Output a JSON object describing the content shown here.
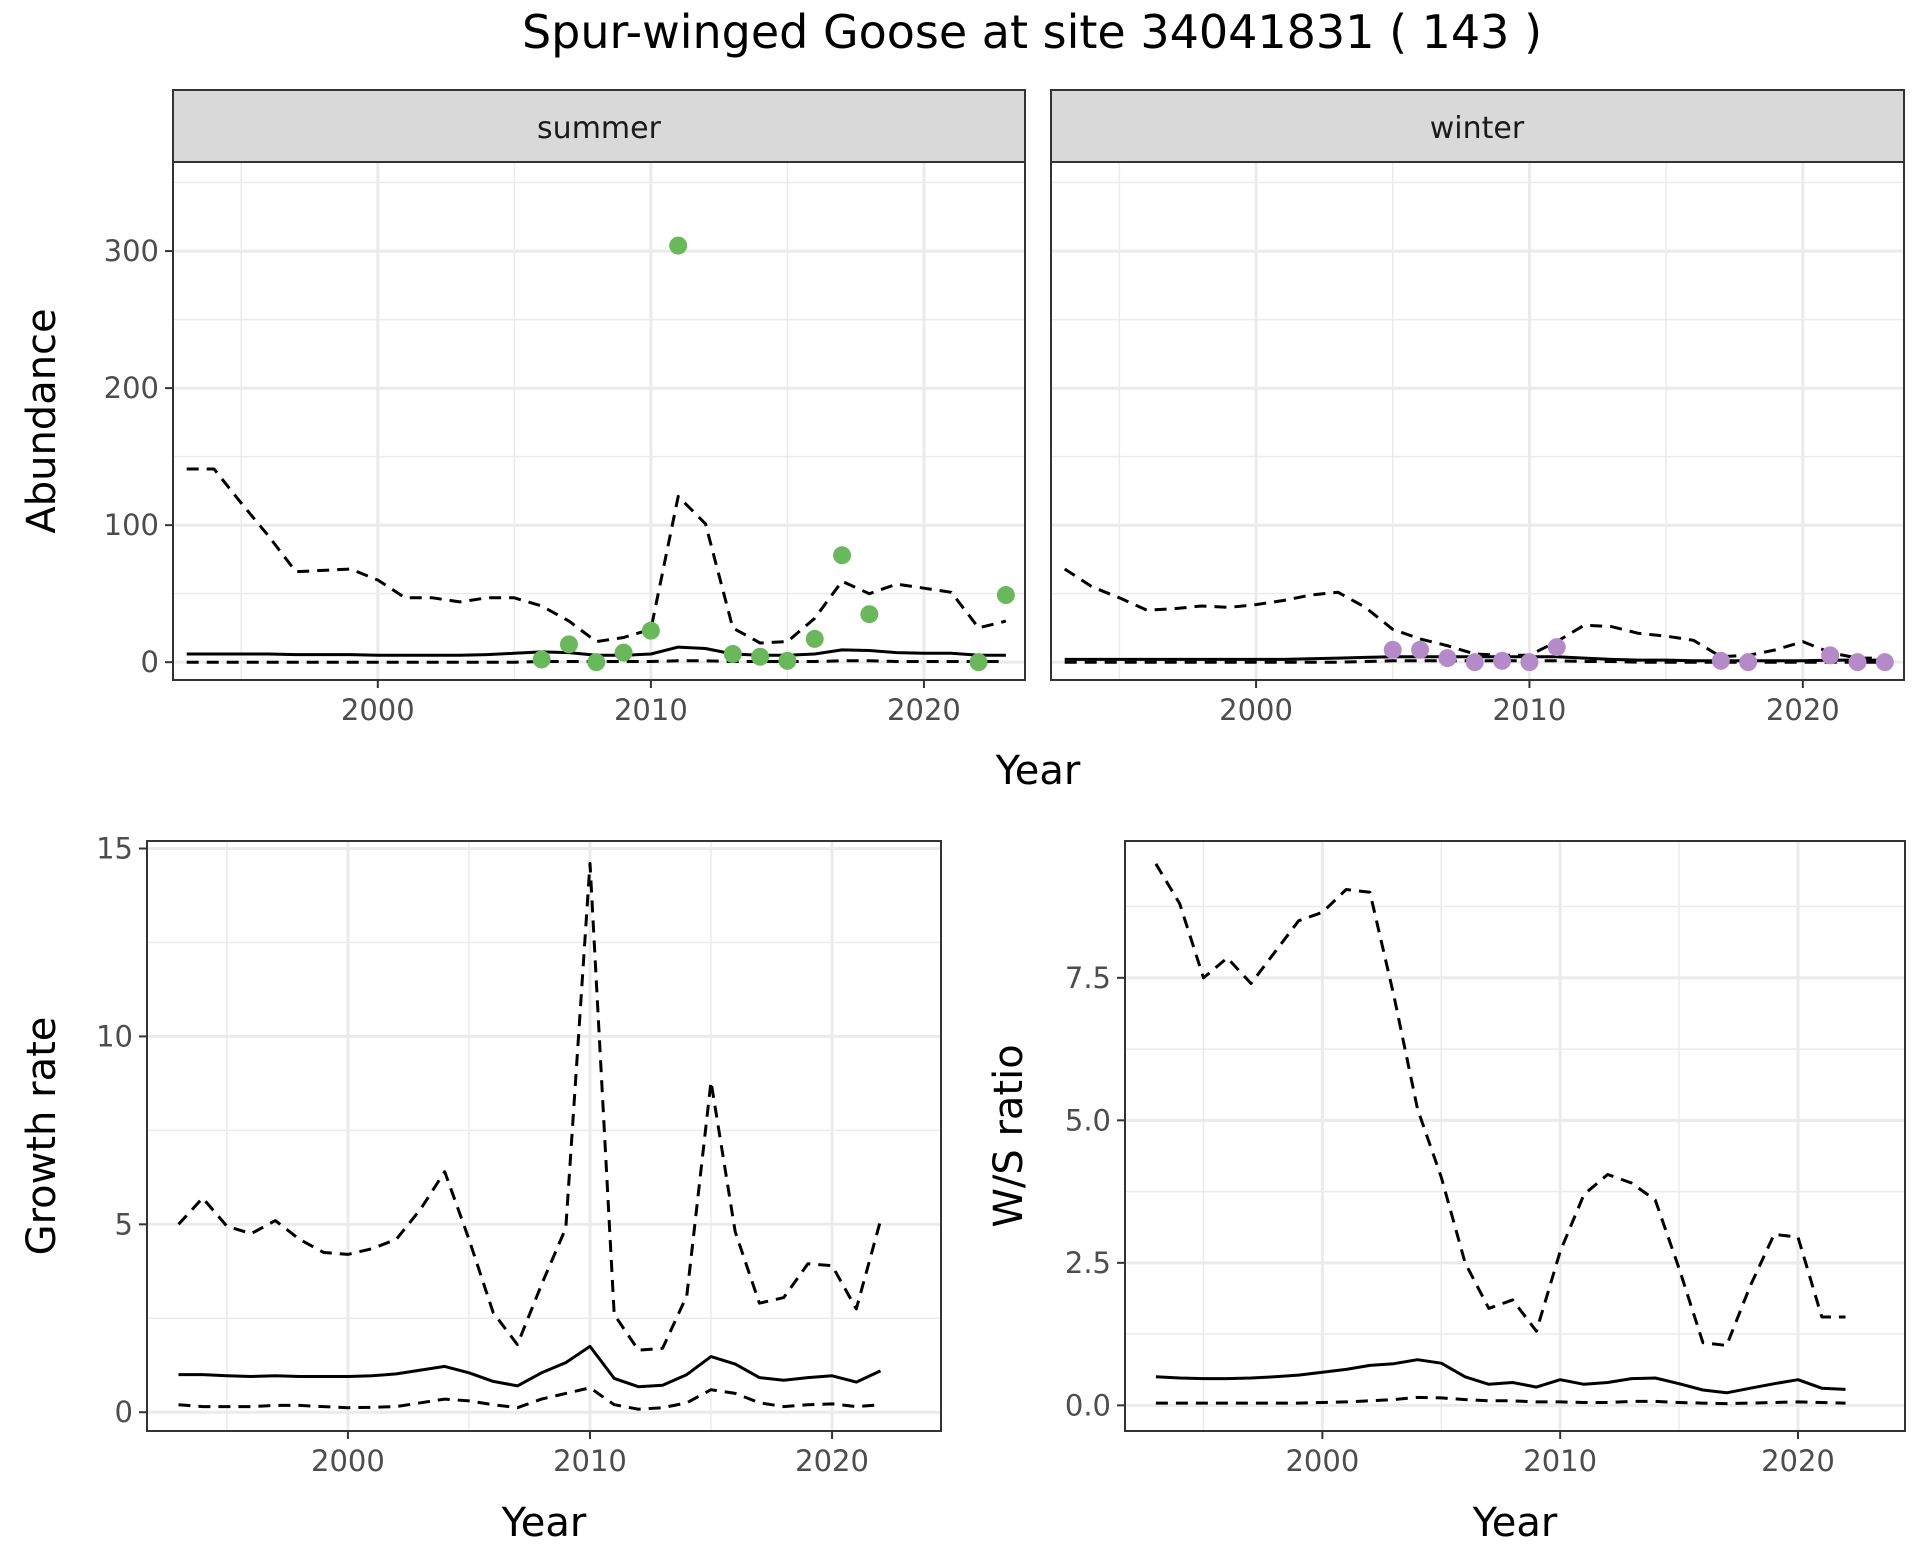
{
  "title": "Spur-winged Goose at site 34041831 ( 143 )",
  "colors": {
    "summer_points": "#6ab85c",
    "winter_points": "#b48bc8",
    "lines": "#000000",
    "strip_fill": "#d9d9d9",
    "grid": "#ebebeb"
  },
  "chart_data": [
    {
      "type": "line",
      "panel": "summer",
      "strip_label": "summer",
      "ylabel": "Abundance",
      "xlabel": "Year",
      "xlim": [
        1992.5,
        2023.7
      ],
      "ylim": [
        -13,
        365
      ],
      "x_ticks": [
        2000,
        2010,
        2020
      ],
      "y_ticks": [
        0,
        100,
        200,
        300
      ],
      "grid": true,
      "series": [
        {
          "style": "solid",
          "x": [
            1993,
            1994,
            1995,
            1996,
            1997,
            1998,
            1999,
            2000,
            2001,
            2002,
            2003,
            2004,
            2005,
            2006,
            2007,
            2008,
            2009,
            2010,
            2011,
            2012,
            2013,
            2014,
            2015,
            2016,
            2017,
            2018,
            2019,
            2020,
            2021,
            2022,
            2023
          ],
          "y": [
            6,
            6,
            6,
            6,
            5.5,
            5.5,
            5.5,
            5,
            5,
            5,
            5,
            5.5,
            6.5,
            7.5,
            7,
            5,
            5,
            6,
            11,
            10,
            6,
            5,
            5,
            6,
            9,
            8.5,
            7,
            6.5,
            6.5,
            5,
            5
          ]
        },
        {
          "style": "dashed",
          "x": [
            1993,
            1994,
            1995,
            1996,
            1997,
            1998,
            1999,
            2000,
            2001,
            2002,
            2003,
            2004,
            2005,
            2006,
            2007,
            2008,
            2009,
            2010,
            2011,
            2012,
            2013,
            2014,
            2015,
            2016,
            2017,
            2018,
            2019,
            2020,
            2021,
            2022,
            2023
          ],
          "y": [
            141,
            141,
            116,
            92,
            66,
            67,
            68,
            60,
            47,
            47,
            44,
            47,
            47,
            41,
            30,
            15,
            18,
            24,
            121,
            101,
            25,
            14,
            15,
            32,
            59,
            50,
            57,
            54,
            51,
            25,
            30
          ]
        },
        {
          "style": "dashed",
          "x": [
            1993,
            1994,
            1995,
            1996,
            1997,
            1998,
            1999,
            2000,
            2001,
            2002,
            2003,
            2004,
            2005,
            2006,
            2007,
            2008,
            2009,
            2010,
            2011,
            2012,
            2013,
            2014,
            2015,
            2016,
            2017,
            2018,
            2019,
            2020,
            2021,
            2022,
            2023
          ],
          "y": [
            0,
            0,
            0,
            0,
            0,
            0,
            0,
            0,
            0,
            0,
            0,
            0,
            0,
            0.5,
            0.5,
            0.5,
            0.5,
            0.5,
            1,
            1,
            0.5,
            0.5,
            0.5,
            0.5,
            1,
            1,
            0.5,
            0.5,
            0.5,
            0.5,
            0.5
          ]
        }
      ],
      "points": {
        "x": [
          2006,
          2007,
          2008,
          2009,
          2010,
          2011,
          2013,
          2014,
          2015,
          2016,
          2017,
          2018,
          2022,
          2023
        ],
        "y": [
          2,
          13,
          0,
          7,
          23,
          304,
          6,
          4,
          1,
          17,
          78,
          35,
          0,
          49
        ]
      }
    },
    {
      "type": "line",
      "panel": "winter",
      "strip_label": "winter",
      "xlabel": "Year",
      "xlim": [
        1992.5,
        2023.7
      ],
      "ylim": [
        -13,
        365
      ],
      "x_ticks": [
        2000,
        2010,
        2020
      ],
      "y_ticks": [
        0,
        100,
        200,
        300
      ],
      "grid": true,
      "series": [
        {
          "style": "solid",
          "x": [
            1993,
            1994,
            1995,
            1996,
            1997,
            1998,
            1999,
            2000,
            2001,
            2002,
            2003,
            2004,
            2005,
            2006,
            2007,
            2008,
            2009,
            2010,
            2011,
            2012,
            2013,
            2014,
            2015,
            2016,
            2017,
            2018,
            2019,
            2020,
            2021,
            2022,
            2023
          ],
          "y": [
            2,
            2,
            2,
            2,
            2,
            2,
            2,
            2,
            2,
            2.5,
            3,
            3.5,
            4,
            4,
            4,
            4,
            4,
            4,
            4,
            3,
            2,
            1.5,
            1.5,
            1,
            1,
            1,
            1,
            1,
            1.5,
            1.5,
            1.5
          ]
        },
        {
          "style": "dashed",
          "x": [
            1993,
            1994,
            1995,
            1996,
            1997,
            1998,
            1999,
            2000,
            2001,
            2002,
            2003,
            2004,
            2005,
            2006,
            2007,
            2008,
            2009,
            2010,
            2011,
            2012,
            2013,
            2014,
            2015,
            2016,
            2017,
            2018,
            2019,
            2020,
            2021,
            2022,
            2023
          ],
          "y": [
            68,
            55,
            47,
            38,
            39,
            41,
            40,
            42,
            45,
            49,
            51,
            40,
            24,
            17,
            12,
            6,
            5,
            5,
            15,
            27,
            26,
            21,
            19,
            16,
            4,
            5,
            9,
            15,
            7,
            3,
            3
          ]
        },
        {
          "style": "dashed",
          "x": [
            1993,
            1994,
            1995,
            1996,
            1997,
            1998,
            1999,
            2000,
            2001,
            2002,
            2003,
            2004,
            2005,
            2006,
            2007,
            2008,
            2009,
            2010,
            2011,
            2012,
            2013,
            2014,
            2015,
            2016,
            2017,
            2018,
            2019,
            2020,
            2021,
            2022,
            2023
          ],
          "y": [
            0,
            0,
            0,
            0,
            0,
            0,
            0,
            0,
            0,
            0,
            0,
            0.5,
            1,
            1,
            1,
            1,
            1,
            1,
            1,
            0.5,
            0.5,
            0,
            0,
            0,
            0,
            0,
            0,
            0,
            0,
            0,
            0
          ]
        }
      ],
      "points": {
        "x": [
          2005,
          2006,
          2007,
          2008,
          2009,
          2010,
          2011,
          2017,
          2018,
          2021,
          2022,
          2023
        ],
        "y": [
          9,
          9,
          3,
          0,
          1,
          0,
          11,
          1,
          0,
          5,
          0,
          0
        ]
      }
    },
    {
      "type": "line",
      "panel": "growth",
      "ylabel": "Growth rate",
      "xlabel": "Year",
      "xlim": [
        1991.7,
        2024.5
      ],
      "ylim": [
        -0.5,
        15.2
      ],
      "x_ticks": [
        2000,
        2010,
        2020
      ],
      "y_ticks": [
        0,
        5,
        10,
        15
      ],
      "grid": true,
      "series": [
        {
          "style": "solid",
          "x": [
            1993,
            1994,
            1995,
            1996,
            1997,
            1998,
            1999,
            2000,
            2001,
            2002,
            2003,
            2004,
            2005,
            2006,
            2007,
            2008,
            2009,
            2010,
            2011,
            2012,
            2013,
            2014,
            2015,
            2016,
            2017,
            2018,
            2019,
            2020,
            2021,
            2022
          ],
          "y": [
            1.0,
            1.0,
            0.97,
            0.95,
            0.97,
            0.95,
            0.95,
            0.95,
            0.97,
            1.02,
            1.12,
            1.22,
            1.05,
            0.82,
            0.7,
            1.05,
            1.32,
            1.75,
            0.9,
            0.68,
            0.72,
            1.0,
            1.48,
            1.28,
            0.92,
            0.85,
            0.92,
            0.97,
            0.8,
            1.1
          ]
        },
        {
          "style": "dashed",
          "x": [
            1993,
            1994,
            1995,
            1996,
            1997,
            1998,
            1999,
            2000,
            2001,
            2002,
            2003,
            2004,
            2005,
            2006,
            2007,
            2008,
            2009,
            2010,
            2011,
            2012,
            2013,
            2014,
            2015,
            2016,
            2017,
            2018,
            2019,
            2020,
            2021,
            2022
          ],
          "y": [
            5.0,
            5.7,
            4.95,
            4.75,
            5.1,
            4.6,
            4.25,
            4.2,
            4.35,
            4.6,
            5.4,
            6.4,
            4.6,
            2.65,
            1.8,
            3.4,
            4.9,
            14.6,
            2.6,
            1.65,
            1.7,
            3.1,
            8.8,
            4.8,
            2.9,
            3.05,
            3.95,
            3.9,
            2.75,
            5.1
          ]
        },
        {
          "style": "dashed",
          "x": [
            1993,
            1994,
            1995,
            1996,
            1997,
            1998,
            1999,
            2000,
            2001,
            2002,
            2003,
            2004,
            2005,
            2006,
            2007,
            2008,
            2009,
            2010,
            2011,
            2012,
            2013,
            2014,
            2015,
            2016,
            2017,
            2018,
            2019,
            2020,
            2021,
            2022
          ],
          "y": [
            0.2,
            0.15,
            0.15,
            0.15,
            0.18,
            0.18,
            0.15,
            0.12,
            0.13,
            0.15,
            0.25,
            0.35,
            0.3,
            0.2,
            0.12,
            0.35,
            0.5,
            0.65,
            0.2,
            0.08,
            0.12,
            0.25,
            0.6,
            0.5,
            0.25,
            0.15,
            0.2,
            0.22,
            0.15,
            0.2
          ]
        }
      ]
    },
    {
      "type": "line",
      "panel": "ratio",
      "ylabel": "W/S ratio",
      "xlabel": "Year",
      "xlim": [
        1991.7,
        2024.5
      ],
      "ylim": [
        -0.45,
        9.9
      ],
      "x_ticks": [
        2000,
        2010,
        2020
      ],
      "y_ticks": [
        0.0,
        2.5,
        5.0,
        7.5
      ],
      "y_tick_labels": [
        "0.0",
        "2.5",
        "5.0",
        "7.5"
      ],
      "grid": true,
      "series": [
        {
          "style": "solid",
          "x": [
            1993,
            1994,
            1995,
            1996,
            1997,
            1998,
            1999,
            2000,
            2001,
            2002,
            2003,
            2004,
            2005,
            2006,
            2007,
            2008,
            2009,
            2010,
            2011,
            2012,
            2013,
            2014,
            2015,
            2016,
            2017,
            2018,
            2019,
            2020,
            2021,
            2022
          ],
          "y": [
            0.5,
            0.48,
            0.47,
            0.47,
            0.48,
            0.5,
            0.53,
            0.58,
            0.63,
            0.7,
            0.73,
            0.8,
            0.74,
            0.5,
            0.37,
            0.4,
            0.32,
            0.45,
            0.37,
            0.4,
            0.47,
            0.48,
            0.38,
            0.27,
            0.22,
            0.3,
            0.38,
            0.45,
            0.3,
            0.28
          ]
        },
        {
          "style": "dashed",
          "x": [
            1993,
            1994,
            1995,
            1996,
            1997,
            1998,
            1999,
            2000,
            2001,
            2002,
            2003,
            2004,
            2005,
            2006,
            2007,
            2008,
            2009,
            2010,
            2011,
            2012,
            2013,
            2014,
            2015,
            2016,
            2017,
            2018,
            2019,
            2020,
            2021,
            2022
          ],
          "y": [
            9.5,
            8.8,
            7.5,
            7.85,
            7.4,
            7.95,
            8.5,
            8.65,
            9.05,
            9.0,
            7.2,
            5.2,
            4.0,
            2.5,
            1.7,
            1.85,
            1.3,
            2.7,
            3.7,
            4.05,
            3.9,
            3.6,
            2.4,
            1.1,
            1.05,
            2.1,
            3.0,
            2.95,
            1.55,
            1.55
          ]
        },
        {
          "style": "dashed",
          "x": [
            1993,
            1994,
            1995,
            1996,
            1997,
            1998,
            1999,
            2000,
            2001,
            2002,
            2003,
            2004,
            2005,
            2006,
            2007,
            2008,
            2009,
            2010,
            2011,
            2012,
            2013,
            2014,
            2015,
            2016,
            2017,
            2018,
            2019,
            2020,
            2021,
            2022
          ],
          "y": [
            0.04,
            0.04,
            0.04,
            0.04,
            0.04,
            0.04,
            0.04,
            0.05,
            0.06,
            0.08,
            0.1,
            0.14,
            0.13,
            0.1,
            0.08,
            0.08,
            0.06,
            0.06,
            0.05,
            0.05,
            0.07,
            0.07,
            0.05,
            0.04,
            0.03,
            0.04,
            0.05,
            0.06,
            0.05,
            0.04
          ]
        }
      ]
    }
  ]
}
